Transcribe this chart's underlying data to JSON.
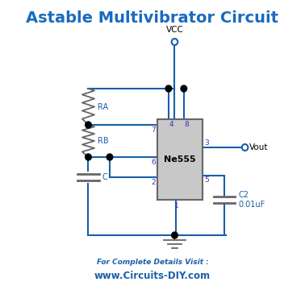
{
  "title": "Astable Multivibrator Circuit",
  "title_color": "#1a6bbf",
  "title_fontsize": 14,
  "bg_color": "#ffffff",
  "wire_color": "#1a5fa8",
  "pin_label_color": "#3333cc",
  "comp_color": "#666666",
  "footer1": "For Complete Details Visit :",
  "footer2": "www.Circuits-DIY.com",
  "footer_color": "#1a5fa8",
  "vcc_label": "VCC",
  "vout_label": "Vout",
  "ra_label": "RA",
  "rb_label": "RB",
  "c_label": "C",
  "c2_label": "C2",
  "c2_val": "0.01uF",
  "ic_label": "Ne555",
  "pin4": "4",
  "pin8": "8",
  "pin7": "7",
  "pin6": "6",
  "pin3": "3",
  "pin5": "5",
  "pin2": "2",
  "pin1": "1"
}
